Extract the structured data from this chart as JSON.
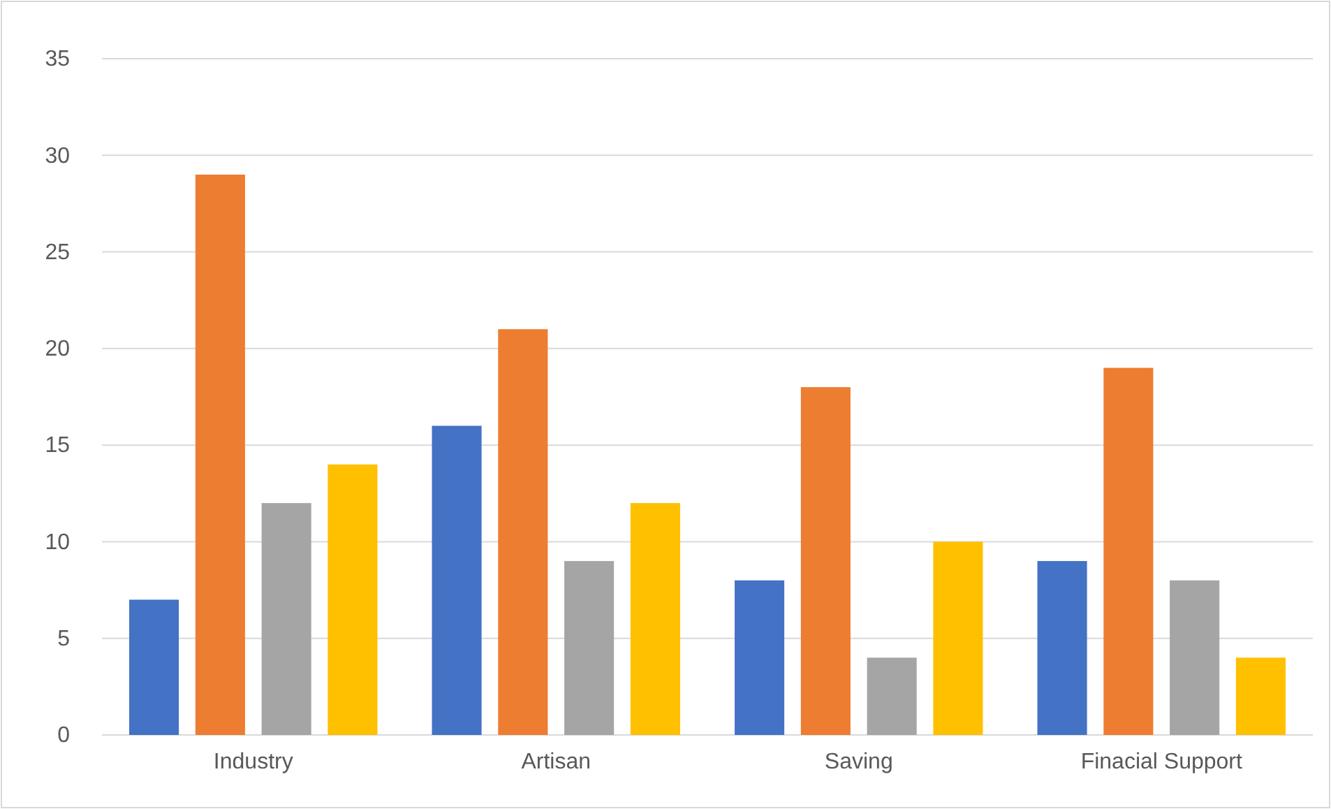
{
  "chart_data": {
    "type": "bar",
    "categories": [
      "Industry",
      "Artisan",
      "Saving",
      "Finacial Support"
    ],
    "series": [
      {
        "color": "#4472c4",
        "values": [
          7,
          16,
          8,
          9
        ]
      },
      {
        "color": "#ed7d31",
        "values": [
          29,
          21,
          18,
          19
        ]
      },
      {
        "color": "#a5a5a5",
        "values": [
          12,
          9,
          4,
          8
        ]
      },
      {
        "color": "#ffc000",
        "values": [
          14,
          12,
          10,
          4
        ]
      }
    ],
    "ylim": [
      0,
      35
    ],
    "yticks": [
      0,
      5,
      10,
      15,
      20,
      25,
      30,
      35
    ],
    "grid": "y"
  }
}
